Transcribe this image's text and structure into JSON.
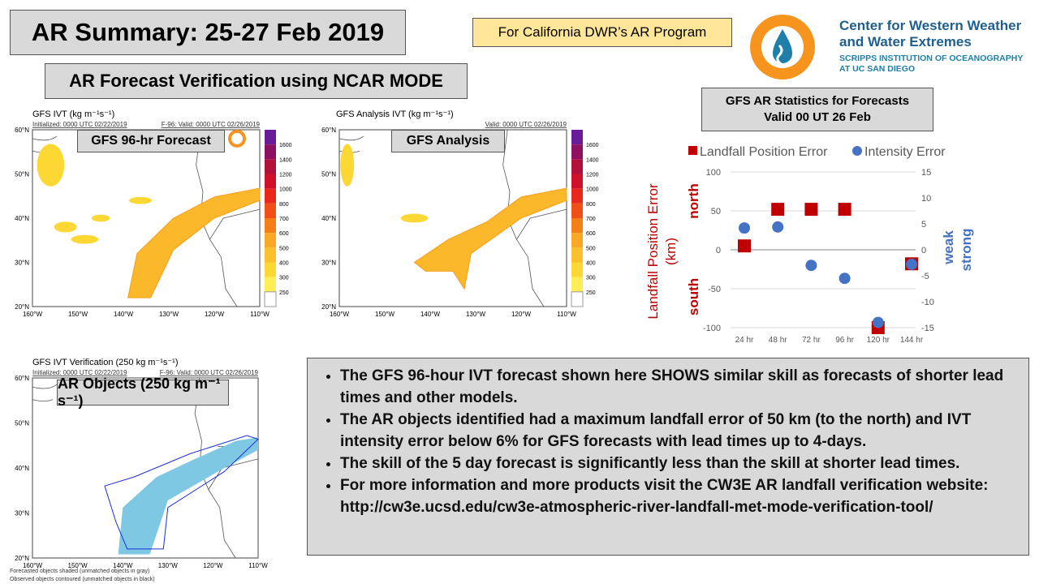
{
  "title": "AR Summary: 25-27 Feb 2019",
  "program_label": "For California DWR’s AR Program",
  "logo": {
    "line1": "Center for Western Weather",
    "line2": "and Water Extremes",
    "line3": "SCRIPPS INSTITUTION OF OCEANOGRAPHY",
    "line4": "AT UC SAN DIEGO"
  },
  "subtitle": "AR Forecast Verification using NCAR MODE",
  "maps": [
    {
      "header": "GFS IVT (kg m⁻¹s⁻¹)",
      "init": "Initialized: 0000 UTC 02/22/2019",
      "valid": "F-96: Valid: 0000 UTC 02/26/2019",
      "label": "GFS 96-hr Forecast"
    },
    {
      "header": "GFS Analysis IVT (kg m⁻¹s⁻¹)",
      "valid": "Valid: 0000 UTC 02/26/2019",
      "label": "GFS Analysis"
    },
    {
      "header": "GFS IVT Verification (250 kg m⁻¹s⁻¹)",
      "init": "Initialized: 0000 UTC 02/22/2019",
      "valid": "F-96: Valid: 0000 UTC 02/26/2019",
      "label": "AR Objects (250 kg m⁻¹ s⁻¹)",
      "footer1": "Forecasted objects shaded (unmatched objects in gray)",
      "footer2": "Observed objects contoured (unmatched objects in black)"
    }
  ],
  "lat_ticks": [
    "60°N",
    "50°N",
    "40°N",
    "30°N",
    "20°N"
  ],
  "lon_ticks": [
    "160°W",
    "150°W",
    "140°W",
    "130°W",
    "120°W",
    "110°W"
  ],
  "colorbar": {
    "labels": [
      "1600",
      "1400",
      "1200",
      "1000",
      "800",
      "700",
      "600",
      "500",
      "400",
      "300",
      "250"
    ],
    "colors": [
      "#6a1b9a",
      "#8e1060",
      "#b0103a",
      "#d0102a",
      "#e8281a",
      "#f05018",
      "#f57f17",
      "#f9a825",
      "#fbc02d",
      "#fdd835",
      "#ffee58"
    ]
  },
  "stats_title": {
    "line1": "GFS AR Statistics for Forecasts",
    "line2": "Valid 00 UT 26 Feb"
  },
  "chart_data": {
    "type": "scatter",
    "categories": [
      "24 hr",
      "48 hr",
      "72 hr",
      "96 hr",
      "120 hr",
      "144 hr"
    ],
    "series": [
      {
        "name": "Landfall Position Error",
        "axis": "left",
        "marker": "square",
        "color": "#c00000",
        "values": [
          5,
          52,
          52,
          52,
          -100,
          -18
        ]
      },
      {
        "name": "Intensity Error",
        "axis": "right",
        "marker": "circle",
        "color": "#4472c4",
        "values": [
          4.2,
          4.4,
          -3,
          -5.5,
          -14,
          -2.8
        ]
      }
    ],
    "ylim_left": [
      -100,
      100
    ],
    "yticks_left": [
      "100",
      "50",
      "0",
      "-50",
      "-100"
    ],
    "ylim_right": [
      -15,
      15
    ],
    "yticks_right": [
      "15",
      "10",
      "5",
      "0",
      "-5",
      "-10",
      "-15"
    ],
    "ylabel_left": "Landfall Position Error (km)",
    "ylabel_north": "north",
    "ylabel_south": "south",
    "ylabel_weak": "weak",
    "ylabel_strong": "strong",
    "legend": "top"
  },
  "bullets": [
    "The GFS 96-hour IVT forecast shown here SHOWS similar skill as forecasts of shorter lead times and other models.",
    "The AR objects identified had a maximum landfall error of 50 km (to the north) and IVT intensity error below 6% for GFS forecasts with lead times up to 4-days.",
    "The skill of the 5 day forecast is significantly less than the skill at shorter lead times.",
    "For more information and more products visit the CW3E AR landfall verification website: http://cw3e.ucsd.edu/cw3e-atmospheric-river-landfall-met-mode-verification-tool/"
  ]
}
